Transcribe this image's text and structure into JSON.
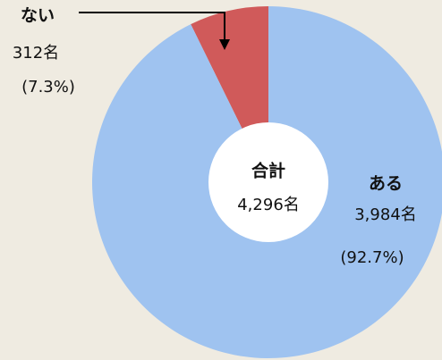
{
  "chart_data": {
    "type": "donut",
    "categories": [
      "ない",
      "ある"
    ],
    "values": [
      312,
      3984
    ],
    "value_labels": [
      "312名",
      "3,984名"
    ],
    "percent_labels": [
      "(7.3%)",
      "(92.7%)"
    ],
    "colors": [
      "#d05a5a",
      "#9fc3f0"
    ],
    "center_title": "合計",
    "center_value": "4,296名"
  }
}
